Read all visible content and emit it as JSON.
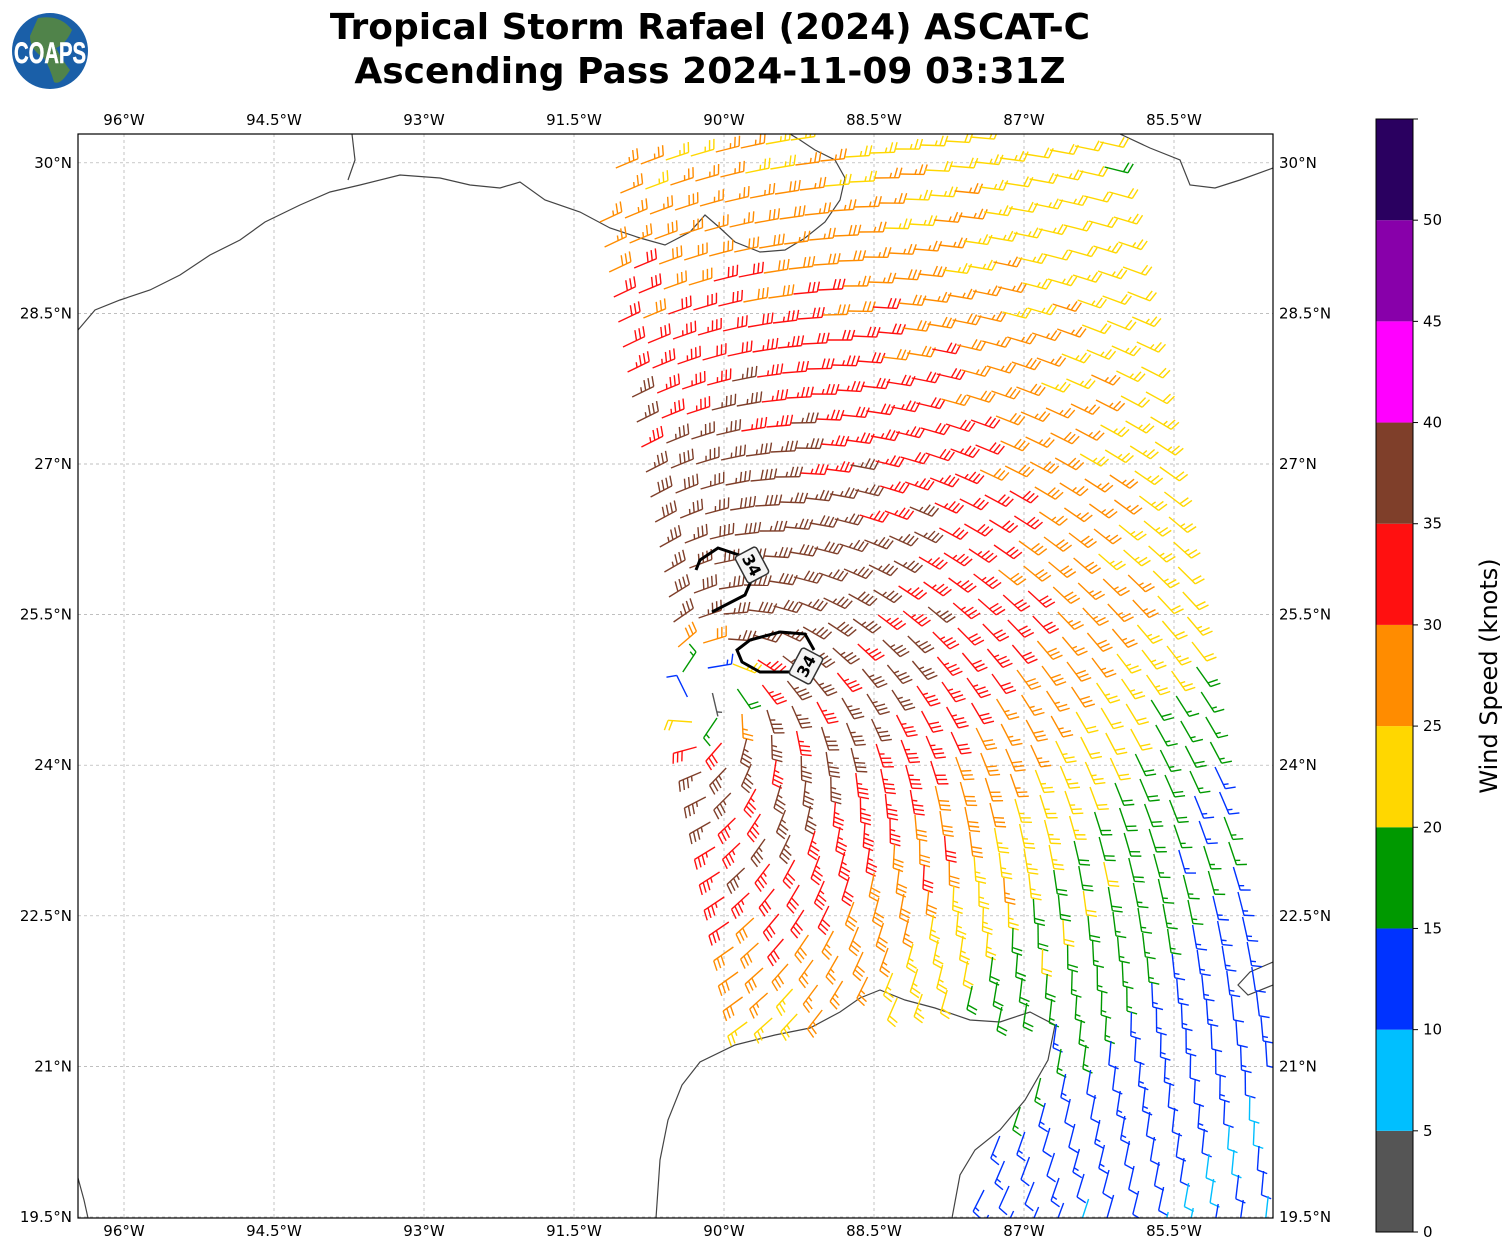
{
  "logo": {
    "text": "COAPS",
    "icon": "globe-logo"
  },
  "chart_data": {
    "type": "map",
    "title_line1": "Tropical Storm Rafael (2024) ASCAT-C",
    "title_line2": "Ascending Pass 2024-11-09 03:31Z",
    "lon_ticks": [
      "96°W",
      "94.5°W",
      "93°W",
      "91.5°W",
      "90°W",
      "88.5°W",
      "87°W",
      "85.5°W"
    ],
    "lon_values": [
      -96,
      -94.5,
      -93,
      -91.5,
      -90,
      -88.5,
      -87,
      -85.5
    ],
    "lat_ticks": [
      "30°N",
      "28.5°N",
      "27°N",
      "25.5°N",
      "24°N",
      "22.5°N",
      "21°N",
      "19.5°N"
    ],
    "lat_values": [
      30,
      28.5,
      27,
      25.5,
      24,
      22.5,
      21,
      19.5
    ],
    "lon_range": [
      -96.46,
      -84.51
    ],
    "lat_range": [
      19.5,
      30.29
    ],
    "grid": true,
    "marks": "wind barbs colored by speed",
    "contour_level_labels": [
      "34",
      "34"
    ],
    "colorbar": {
      "label": "Wind Speed (knots)",
      "ticks": [
        "0",
        "5",
        "10",
        "15",
        "20",
        "25",
        "30",
        "35",
        "40",
        "45",
        "50"
      ],
      "bins": [
        {
          "min": 0,
          "max": 5,
          "color": "#555555"
        },
        {
          "min": 5,
          "max": 10,
          "color": "#00bfff"
        },
        {
          "min": 10,
          "max": 15,
          "color": "#0033ff"
        },
        {
          "min": 15,
          "max": 20,
          "color": "#009900"
        },
        {
          "min": 20,
          "max": 25,
          "color": "#ffd700"
        },
        {
          "min": 25,
          "max": 30,
          "color": "#ff8c00"
        },
        {
          "min": 30,
          "max": 35,
          "color": "#ff1010"
        },
        {
          "min": 35,
          "max": 40,
          "color": "#7f3f2a"
        },
        {
          "min": 40,
          "max": 45,
          "color": "#ff00ff"
        },
        {
          "min": 45,
          "max": 50,
          "color": "#8800aa"
        },
        {
          "min": 50,
          "max": 55,
          "color": "#2a0060"
        }
      ]
    }
  }
}
